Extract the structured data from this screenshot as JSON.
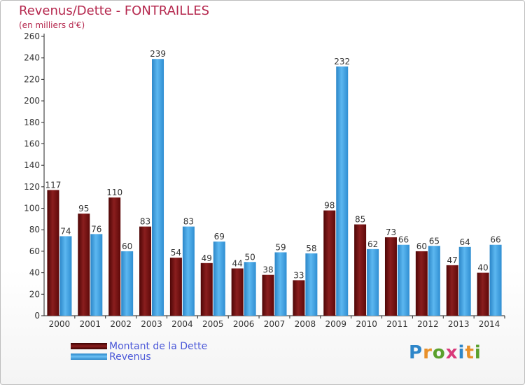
{
  "header": {
    "title": "Revenus/Dette - FONTRAILLES",
    "subtitle": "(en milliers d'€)"
  },
  "legend": {
    "items": [
      {
        "label": "Montant de la Dette",
        "color": "#7a1111"
      },
      {
        "label": "Revenus",
        "color": "#3b9ee0"
      }
    ]
  },
  "brand": {
    "logo_text": "Proxiti"
  },
  "chart_data": {
    "type": "bar",
    "title": "Revenus/Dette - FONTRAILLES",
    "subtitle": "(en milliers d'€)",
    "xlabel": "",
    "ylabel": "",
    "ylim": [
      0,
      260
    ],
    "yticks": [
      0,
      20,
      40,
      60,
      80,
      100,
      120,
      140,
      160,
      180,
      200,
      220,
      240,
      260
    ],
    "grid": false,
    "legend_position": "bottom-left",
    "categories": [
      "2000",
      "2001",
      "2002",
      "2003",
      "2004",
      "2005",
      "2006",
      "2007",
      "2008",
      "2009",
      "2010",
      "2011",
      "2012",
      "2013",
      "2014"
    ],
    "series": [
      {
        "name": "Montant de la Dette",
        "color": "#7a1111",
        "values": [
          117,
          95,
          110,
          83,
          54,
          49,
          44,
          38,
          33,
          98,
          85,
          73,
          60,
          47,
          40
        ]
      },
      {
        "name": "Revenus",
        "color": "#3b9ee0",
        "values": [
          74,
          76,
          60,
          239,
          83,
          69,
          50,
          59,
          58,
          232,
          62,
          66,
          65,
          64,
          66
        ]
      }
    ]
  }
}
